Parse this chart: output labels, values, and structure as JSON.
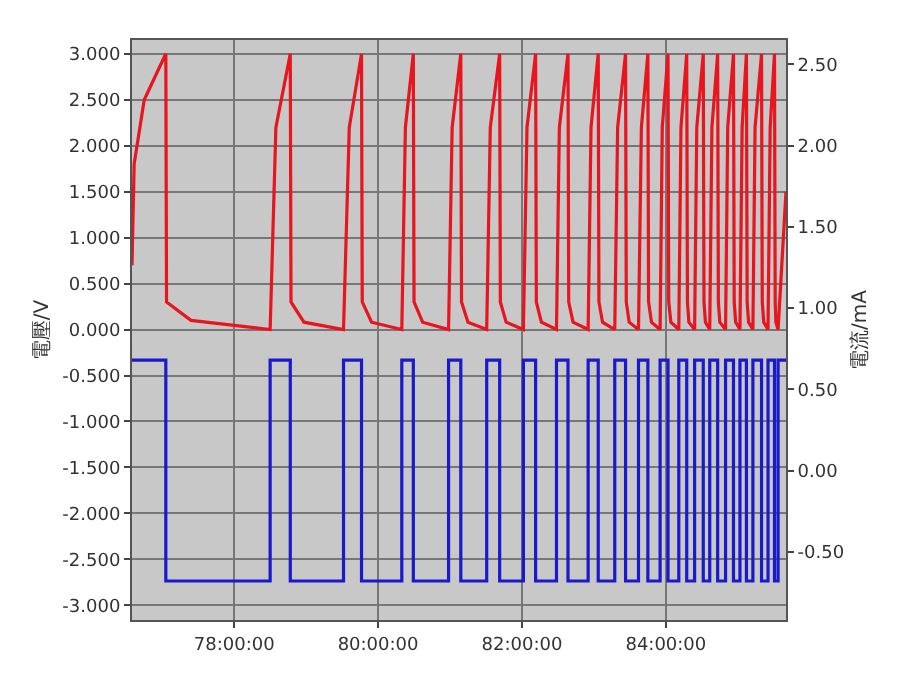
{
  "chart_data": {
    "type": "line",
    "xlim": [
      76.58,
      85.67
    ],
    "xticks": [
      {
        "value": 78,
        "label": "78:00:00"
      },
      {
        "value": 80,
        "label": "80:00:00"
      },
      {
        "value": 82,
        "label": "82:00:00"
      },
      {
        "value": 84,
        "label": "84:00:00"
      }
    ],
    "ylabel": "電壓/V",
    "y2label": "電流/mA",
    "ylim": [
      -3.16,
      3.15
    ],
    "yticks": [
      {
        "value": 3,
        "label": "3.000"
      },
      {
        "value": 2.5,
        "label": "2.500"
      },
      {
        "value": 2,
        "label": "2.000"
      },
      {
        "value": 1.5,
        "label": "1.500"
      },
      {
        "value": 1,
        "label": "1.000"
      },
      {
        "value": 0.5,
        "label": "0.500"
      },
      {
        "value": 0,
        "label": "0.000"
      },
      {
        "value": -0.5,
        "label": "-0.500"
      },
      {
        "value": -1,
        "label": "-1.000"
      },
      {
        "value": -1.5,
        "label": "-1.500"
      },
      {
        "value": -2,
        "label": "-2.000"
      },
      {
        "value": -2.5,
        "label": "-2.500"
      },
      {
        "value": -3,
        "label": "-3.000"
      }
    ],
    "y2lim": [
      -0.92,
      2.65
    ],
    "y2ticks": [
      {
        "value": 2.5,
        "label": "2.50"
      },
      {
        "value": 2,
        "label": "2.00"
      },
      {
        "value": 1.5,
        "label": "1.50"
      },
      {
        "value": 1,
        "label": "1.00"
      },
      {
        "value": 0.5,
        "label": "0.50"
      },
      {
        "value": 0,
        "label": "0.00"
      },
      {
        "value": -0.5,
        "label": "-0.50"
      }
    ],
    "grid": true,
    "series": [
      {
        "color": "#e8141e",
        "x": [
          76.58,
          76.61,
          76.75,
          77.05,
          77.06,
          77.4,
          78.5,
          78.58,
          78.78,
          78.79,
          78.97,
          79.52,
          79.6,
          79.77,
          79.78,
          79.91,
          80.33,
          80.38,
          80.49,
          80.5,
          80.62,
          80.98,
          81.03,
          81.15,
          81.16,
          81.25,
          81.51,
          81.56,
          81.69,
          81.7,
          81.78,
          82.02,
          82.07,
          82.19,
          82.2,
          82.27,
          82.48,
          82.52,
          82.64,
          82.65,
          82.71,
          82.92,
          82.96,
          83.06,
          83.07,
          83.12,
          83.29,
          83.33,
          83.44,
          83.45,
          83.49,
          83.62,
          83.66,
          83.75,
          83.76,
          83.8,
          83.92,
          83.95,
          84.03,
          84.04,
          84.07,
          84.18,
          84.21,
          84.29,
          84.3,
          84.32,
          84.4,
          84.43,
          84.52,
          84.53,
          84.55,
          84.61,
          84.64,
          84.72,
          84.73,
          84.75,
          84.83,
          84.86,
          84.94,
          84.95,
          84.97,
          85.03,
          85.06,
          85.12,
          85.13,
          85.15,
          85.21,
          85.24,
          85.33,
          85.34,
          85.36,
          85.42,
          85.45,
          85.51,
          85.52,
          85.53,
          85.56,
          85.67
        ],
        "values": [
          0.7,
          1.8,
          2.5,
          3.0,
          0.3,
          0.1,
          0.0,
          2.2,
          3.0,
          0.3,
          0.08,
          0.0,
          2.2,
          3.0,
          0.3,
          0.08,
          0.0,
          2.2,
          3.0,
          0.3,
          0.08,
          0.0,
          2.2,
          3.0,
          0.3,
          0.08,
          0.0,
          2.2,
          3.0,
          0.3,
          0.08,
          0.0,
          2.2,
          3.0,
          0.3,
          0.08,
          0.0,
          2.2,
          3.0,
          0.3,
          0.08,
          0.0,
          2.2,
          3.0,
          0.3,
          0.08,
          0.0,
          2.2,
          3.0,
          0.3,
          0.08,
          0.0,
          2.2,
          3.0,
          0.3,
          0.08,
          0.0,
          2.2,
          3.0,
          0.3,
          0.08,
          0.0,
          2.2,
          3.0,
          0.3,
          0.08,
          0.0,
          2.2,
          3.0,
          0.3,
          0.08,
          0.0,
          2.2,
          3.0,
          0.3,
          0.08,
          0.0,
          2.2,
          3.0,
          0.3,
          0.08,
          0.0,
          2.2,
          3.0,
          0.3,
          0.08,
          0.0,
          2.2,
          3.0,
          0.3,
          0.08,
          0.0,
          2.2,
          3.0,
          0.3,
          0.08,
          0.0,
          1.5
        ]
      },
      {
        "type": "step",
        "axis": "y2",
        "color": "#1a1acc",
        "x": [
          76.58,
          77.05,
          78.5,
          78.78,
          79.52,
          79.77,
          80.33,
          80.49,
          80.98,
          81.15,
          81.51,
          81.69,
          82.02,
          82.19,
          82.48,
          82.64,
          82.92,
          83.06,
          83.29,
          83.44,
          83.62,
          83.75,
          83.92,
          84.03,
          84.18,
          84.29,
          84.4,
          84.52,
          84.61,
          84.72,
          84.83,
          84.94,
          85.03,
          85.12,
          85.21,
          85.33,
          85.42,
          85.51,
          85.56,
          85.67
        ],
        "values": [
          0.68,
          -0.68,
          0.68,
          -0.68,
          0.68,
          -0.68,
          0.68,
          -0.68,
          0.68,
          -0.68,
          0.68,
          -0.68,
          0.68,
          -0.68,
          0.68,
          -0.68,
          0.68,
          -0.68,
          0.68,
          -0.68,
          0.68,
          -0.68,
          0.68,
          -0.68,
          0.68,
          -0.68,
          0.68,
          -0.68,
          0.68,
          -0.68,
          0.68,
          -0.68,
          0.68,
          -0.68,
          0.68,
          -0.68,
          0.68,
          -0.68,
          0.68,
          0.68
        ]
      }
    ]
  }
}
